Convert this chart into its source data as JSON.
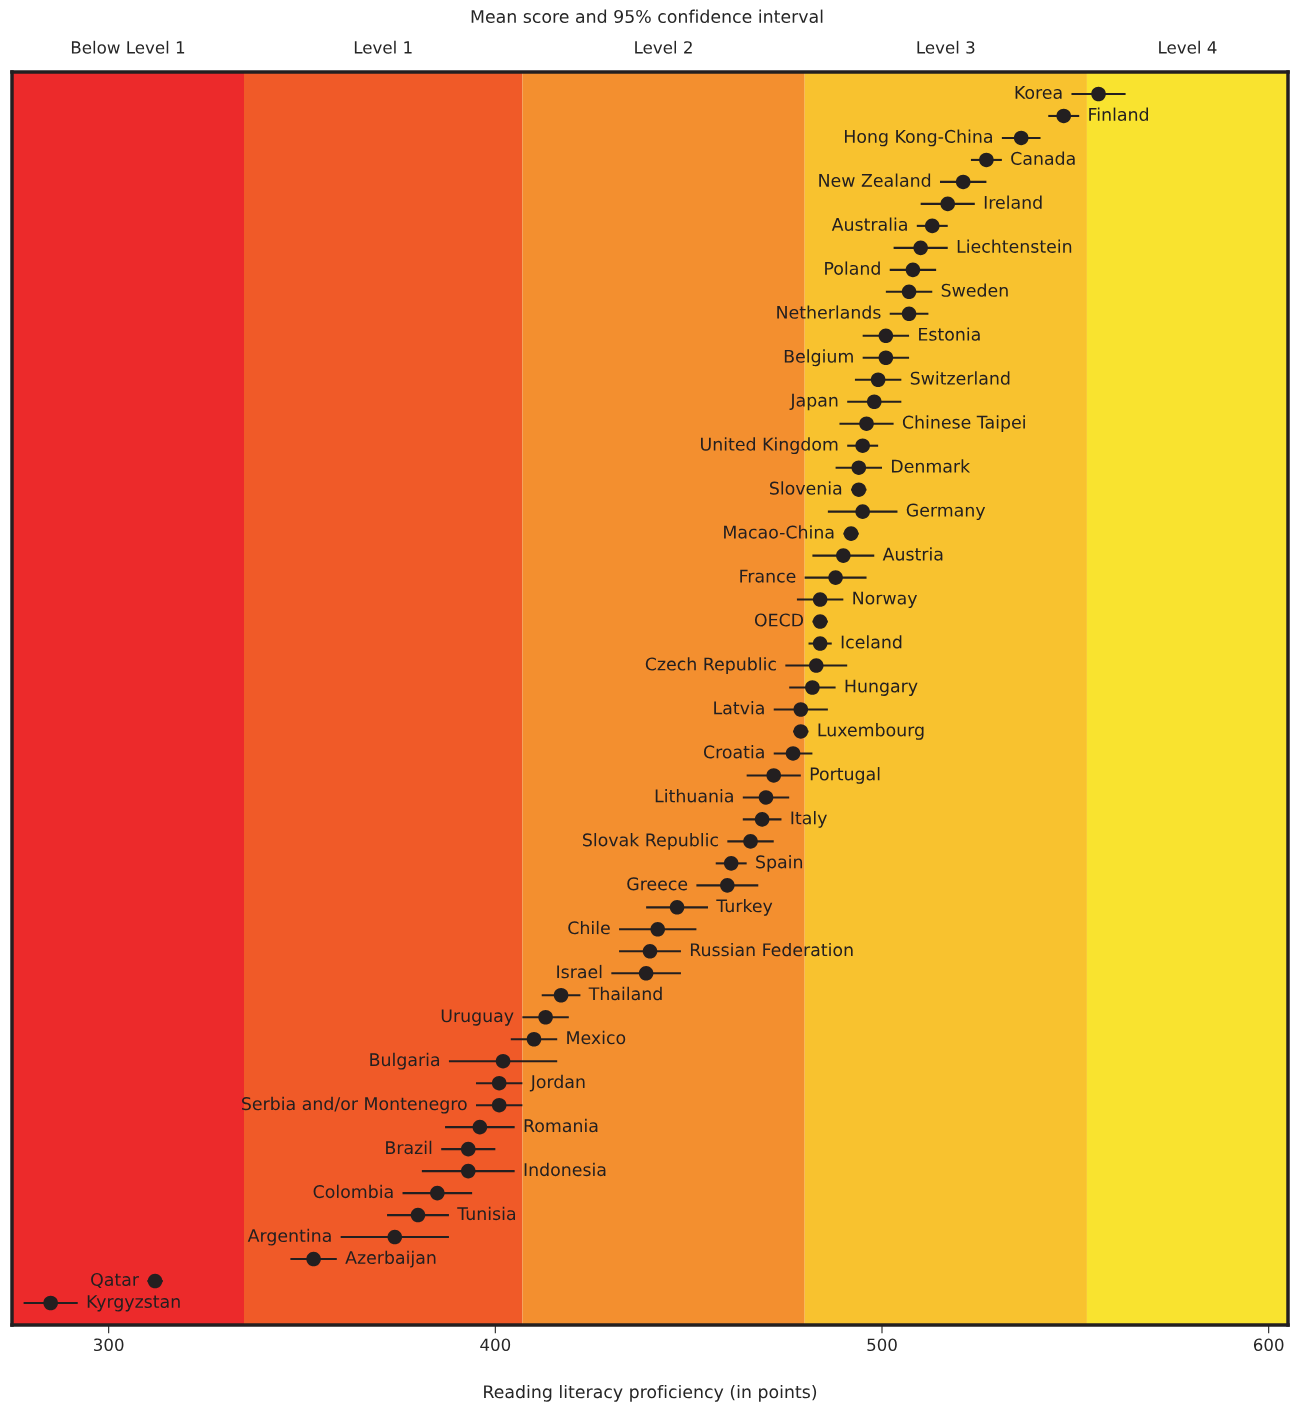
{
  "chart_data": {
    "type": "scatter",
    "orientation": "horizontal",
    "title": "Mean score and 95% confidence interval",
    "xlabel": "Reading literacy proficiency (in points)",
    "categories": [
      "Korea",
      "Finland",
      "Hong Kong-China",
      "Canada",
      "New Zealand",
      "Ireland",
      "Australia",
      "Liechtenstein",
      "Poland",
      "Sweden",
      "Netherlands",
      "Estonia",
      "Belgium",
      "Switzerland",
      "Japan",
      "Chinese Taipei",
      "United Kingdom",
      "Denmark",
      "Slovenia",
      "Germany",
      "Macao-China",
      "Austria",
      "France",
      "Norway",
      "OECD",
      "Iceland",
      "Czech Republic",
      "Hungary",
      "Latvia",
      "Luxembourg",
      "Croatia",
      "Portugal",
      "Lithuania",
      "Italy",
      "Slovak Republic",
      "Spain",
      "Greece",
      "Turkey",
      "Chile",
      "Russian Federation",
      "Israel",
      "Thailand",
      "Uruguay",
      "Mexico",
      "Bulgaria",
      "Jordan",
      "Serbia and/or Montenegro",
      "Romania",
      "Brazil",
      "Indonesia",
      "Colombia",
      "Tunisia",
      "Argentina",
      "Azerbaijan",
      "Qatar",
      "Kyrgyzstan"
    ],
    "series": [
      {
        "color": "#231f20",
        "values": [
          556,
          547,
          536,
          527,
          521,
          517,
          513,
          510,
          508,
          507,
          507,
          501,
          501,
          499,
          498,
          496,
          495,
          494,
          494,
          495,
          492,
          490,
          488,
          484,
          484,
          484,
          483,
          482,
          479,
          479,
          477,
          472,
          470,
          469,
          466,
          461,
          460,
          447,
          442,
          440,
          439,
          417,
          413,
          410,
          402,
          401,
          401,
          396,
          393,
          393,
          385,
          380,
          374,
          353,
          312,
          285
        ],
        "errors": [
          7,
          4,
          5,
          4,
          6,
          7,
          4,
          7,
          6,
          6,
          5,
          6,
          6,
          6,
          7,
          7,
          4,
          6,
          2,
          9,
          2,
          8,
          8,
          6,
          2,
          3,
          8,
          6,
          7,
          2,
          5,
          7,
          6,
          5,
          6,
          4,
          8,
          8,
          10,
          8,
          9,
          5,
          6,
          6,
          14,
          6,
          6,
          9,
          7,
          12,
          9,
          8,
          14,
          6,
          2,
          7
        ]
      }
    ],
    "bands": [
      {
        "axis": "x",
        "from": 275,
        "to": 335,
        "label": "Below Level 1",
        "color": "#ec2a2b"
      },
      {
        "axis": "x",
        "from": 335,
        "to": 407,
        "label": "Level 1",
        "color": "#f05a28"
      },
      {
        "axis": "x",
        "from": 407,
        "to": 480,
        "label": "Level 2",
        "color": "#f38f2f"
      },
      {
        "axis": "x",
        "from": 480,
        "to": 553,
        "label": "Level 3",
        "color": "#f8c22f"
      },
      {
        "axis": "x",
        "from": 553,
        "to": 605,
        "label": "Level 4",
        "color": "#f9e32f"
      }
    ],
    "xlim": [
      275,
      605
    ],
    "xticks": [
      300,
      400,
      500,
      600
    ],
    "marker": "circle",
    "grid": false,
    "legend": false,
    "tick_labels": "x"
  }
}
